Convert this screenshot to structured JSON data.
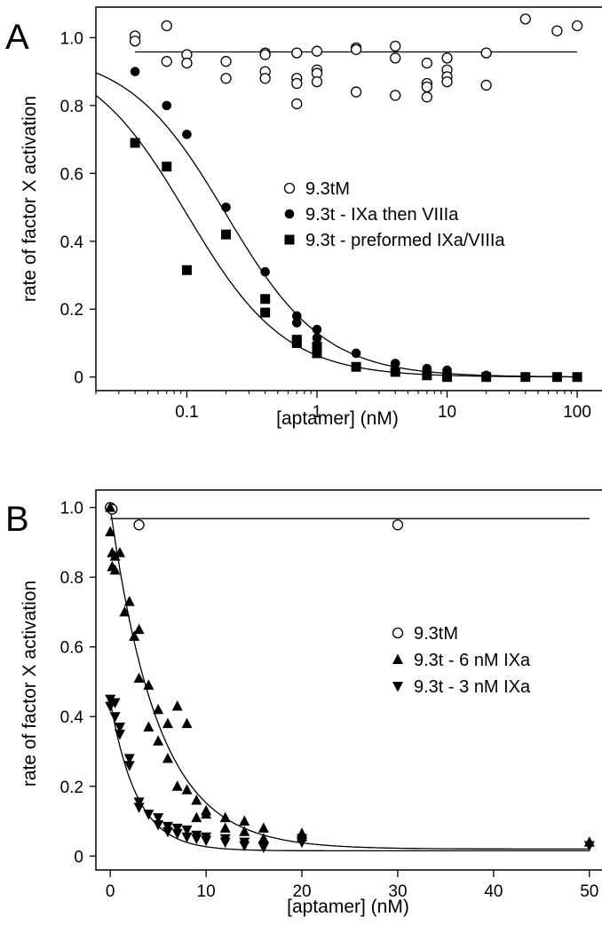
{
  "chart_data": [
    {
      "panel_label": "A",
      "type": "scatter",
      "xscale": "log",
      "xlabel": "[aptamer] (nM)",
      "ylabel": "rate of factor X activation",
      "xlim": [
        0.02,
        160
      ],
      "ylim": [
        -0.04,
        1.09
      ],
      "xticks": [
        0.1,
        1,
        10,
        100
      ],
      "xtick_labels": [
        "0.1",
        "1",
        "10",
        "100"
      ],
      "yticks": [
        0,
        0.2,
        0.4,
        0.6,
        0.8,
        1.0
      ],
      "ytick_labels": [
        "0",
        "0.2",
        "0.4",
        "0.6",
        "0.8",
        "1.0"
      ],
      "grid": false,
      "legend_position": "center-right",
      "series": [
        {
          "name": "9.3tM",
          "marker": "open-circle",
          "points": [
            [
              0.04,
              1.005
            ],
            [
              0.04,
              0.99
            ],
            [
              0.07,
              1.035
            ],
            [
              0.07,
              0.93
            ],
            [
              0.1,
              0.95
            ],
            [
              0.1,
              0.925
            ],
            [
              0.2,
              0.93
            ],
            [
              0.2,
              0.88
            ],
            [
              0.4,
              0.955
            ],
            [
              0.4,
              0.95
            ],
            [
              0.4,
              0.9
            ],
            [
              0.4,
              0.88
            ],
            [
              0.7,
              0.955
            ],
            [
              0.7,
              0.88
            ],
            [
              0.7,
              0.865
            ],
            [
              0.7,
              0.805
            ],
            [
              1,
              0.96
            ],
            [
              1,
              0.905
            ],
            [
              1,
              0.895
            ],
            [
              1,
              0.87
            ],
            [
              2,
              0.97
            ],
            [
              2,
              0.965
            ],
            [
              2,
              0.84
            ],
            [
              4,
              0.975
            ],
            [
              4,
              0.94
            ],
            [
              4,
              0.83
            ],
            [
              7,
              0.925
            ],
            [
              7,
              0.865
            ],
            [
              7,
              0.855
            ],
            [
              7,
              0.825
            ],
            [
              10,
              0.94
            ],
            [
              10,
              0.905
            ],
            [
              10,
              0.885
            ],
            [
              10,
              0.87
            ],
            [
              20,
              0.955
            ],
            [
              20,
              0.86
            ],
            [
              40,
              1.055
            ],
            [
              70,
              1.02
            ],
            [
              100,
              1.035
            ]
          ]
        },
        {
          "name": "9.3t - IXa then VIIIa",
          "marker": "filled-circle",
          "points": [
            [
              0.04,
              0.9
            ],
            [
              0.07,
              0.8
            ],
            [
              0.1,
              0.715
            ],
            [
              0.2,
              0.5
            ],
            [
              0.4,
              0.31
            ],
            [
              0.7,
              0.18
            ],
            [
              0.7,
              0.16
            ],
            [
              1,
              0.14
            ],
            [
              1,
              0.115
            ],
            [
              2,
              0.07
            ],
            [
              4,
              0.04
            ],
            [
              7,
              0.025
            ],
            [
              10,
              0.02
            ],
            [
              20,
              0.005
            ],
            [
              40,
              0.0
            ],
            [
              70,
              0.0
            ],
            [
              100,
              0.0
            ]
          ]
        },
        {
          "name": "9.3t - preformed IXa/VIIIa",
          "marker": "filled-square",
          "points": [
            [
              0.04,
              0.69
            ],
            [
              0.07,
              0.62
            ],
            [
              0.1,
              0.315
            ],
            [
              0.2,
              0.42
            ],
            [
              0.4,
              0.23
            ],
            [
              0.4,
              0.19
            ],
            [
              0.7,
              0.11
            ],
            [
              0.7,
              0.1
            ],
            [
              1,
              0.09
            ],
            [
              1,
              0.07
            ],
            [
              2,
              0.03
            ],
            [
              4,
              0.015
            ],
            [
              7,
              0.005
            ],
            [
              10,
              0.0
            ],
            [
              20,
              0.0
            ],
            [
              40,
              0.0
            ],
            [
              70,
              0.0
            ],
            [
              100,
              0.0
            ]
          ]
        }
      ],
      "curves": [
        {
          "model": "constant",
          "value": 0.958,
          "x_range": [
            0.04,
            100
          ]
        },
        {
          "model": "inhibition",
          "top": 0.96,
          "ic50": 0.2,
          "hill": 1.15,
          "x_range": [
            0.02,
            100
          ]
        },
        {
          "model": "inhibition",
          "top": 0.96,
          "ic50": 0.1,
          "hill": 1.15,
          "x_range": [
            0.02,
            100
          ]
        }
      ]
    },
    {
      "panel_label": "B",
      "type": "scatter",
      "xscale": "linear",
      "xlabel": "[aptamer] (nM)",
      "ylabel": "rate of factor X activation",
      "xlim": [
        -1.5,
        51.5
      ],
      "ylim": [
        -0.04,
        1.05
      ],
      "xticks": [
        0,
        10,
        20,
        30,
        40,
        50
      ],
      "xtick_labels": [
        "0",
        "10",
        "20",
        "30",
        "40",
        "50"
      ],
      "yticks": [
        0,
        0.2,
        0.4,
        0.6,
        0.8,
        1.0
      ],
      "ytick_labels": [
        "0",
        "0.2",
        "0.4",
        "0.6",
        "0.8",
        "1.0"
      ],
      "grid": false,
      "legend_position": "center-right",
      "series": [
        {
          "name": "9.3tM",
          "marker": "open-circle",
          "points": [
            [
              0,
              1.0
            ],
            [
              0.2,
              0.995
            ],
            [
              3,
              0.95
            ],
            [
              30,
              0.95
            ]
          ]
        },
        {
          "name": "9.3t - 6 nM IXa",
          "marker": "filled-triangle-up",
          "points": [
            [
              0,
              1.0
            ],
            [
              0,
              0.93
            ],
            [
              0.2,
              0.87
            ],
            [
              0.2,
              0.83
            ],
            [
              0.5,
              0.86
            ],
            [
              0.5,
              0.82
            ],
            [
              1,
              0.87
            ],
            [
              1.5,
              0.7
            ],
            [
              2,
              0.73
            ],
            [
              2.5,
              0.63
            ],
            [
              3,
              0.65
            ],
            [
              3,
              0.51
            ],
            [
              4,
              0.49
            ],
            [
              4,
              0.37
            ],
            [
              5,
              0.42
            ],
            [
              5,
              0.33
            ],
            [
              6,
              0.38
            ],
            [
              6,
              0.28
            ],
            [
              7,
              0.2
            ],
            [
              7,
              0.43
            ],
            [
              8,
              0.19
            ],
            [
              8,
              0.38
            ],
            [
              9,
              0.16
            ],
            [
              9,
              0.11
            ],
            [
              10,
              0.12
            ],
            [
              10,
              0.13
            ],
            [
              12,
              0.11
            ],
            [
              12,
              0.08
            ],
            [
              14,
              0.1
            ],
            [
              14,
              0.07
            ],
            [
              16,
              0.08
            ],
            [
              16,
              0.05
            ],
            [
              20,
              0.065
            ],
            [
              20,
              0.055
            ],
            [
              50,
              0.04
            ]
          ]
        },
        {
          "name": "9.3t - 3 nM IXa",
          "marker": "filled-triangle-down",
          "points": [
            [
              0,
              0.45
            ],
            [
              0,
              0.43
            ],
            [
              0.5,
              0.44
            ],
            [
              0.5,
              0.4
            ],
            [
              1,
              0.37
            ],
            [
              1,
              0.35
            ],
            [
              2,
              0.28
            ],
            [
              2,
              0.26
            ],
            [
              3,
              0.155
            ],
            [
              3,
              0.14
            ],
            [
              4,
              0.12
            ],
            [
              5,
              0.11
            ],
            [
              5,
              0.09
            ],
            [
              6,
              0.085
            ],
            [
              6,
              0.07
            ],
            [
              7,
              0.08
            ],
            [
              7,
              0.065
            ],
            [
              8,
              0.075
            ],
            [
              8,
              0.055
            ],
            [
              9,
              0.06
            ],
            [
              9,
              0.05
            ],
            [
              10,
              0.055
            ],
            [
              10,
              0.045
            ],
            [
              12,
              0.05
            ],
            [
              12,
              0.04
            ],
            [
              14,
              0.04
            ],
            [
              14,
              0.03
            ],
            [
              16,
              0.03
            ],
            [
              16,
              0.025
            ],
            [
              20,
              0.05
            ],
            [
              20,
              0.04
            ],
            [
              50,
              0.03
            ]
          ]
        }
      ],
      "curves": [
        {
          "model": "constant",
          "value": 0.968,
          "x_range": [
            0,
            50
          ]
        },
        {
          "model": "exp_decay",
          "a": 0.98,
          "k": 0.2,
          "c": 0.02,
          "x_range": [
            0,
            50
          ]
        },
        {
          "model": "exp_decay",
          "a": 0.43,
          "k": 0.36,
          "c": 0.015,
          "x_range": [
            0,
            50
          ]
        }
      ]
    }
  ]
}
